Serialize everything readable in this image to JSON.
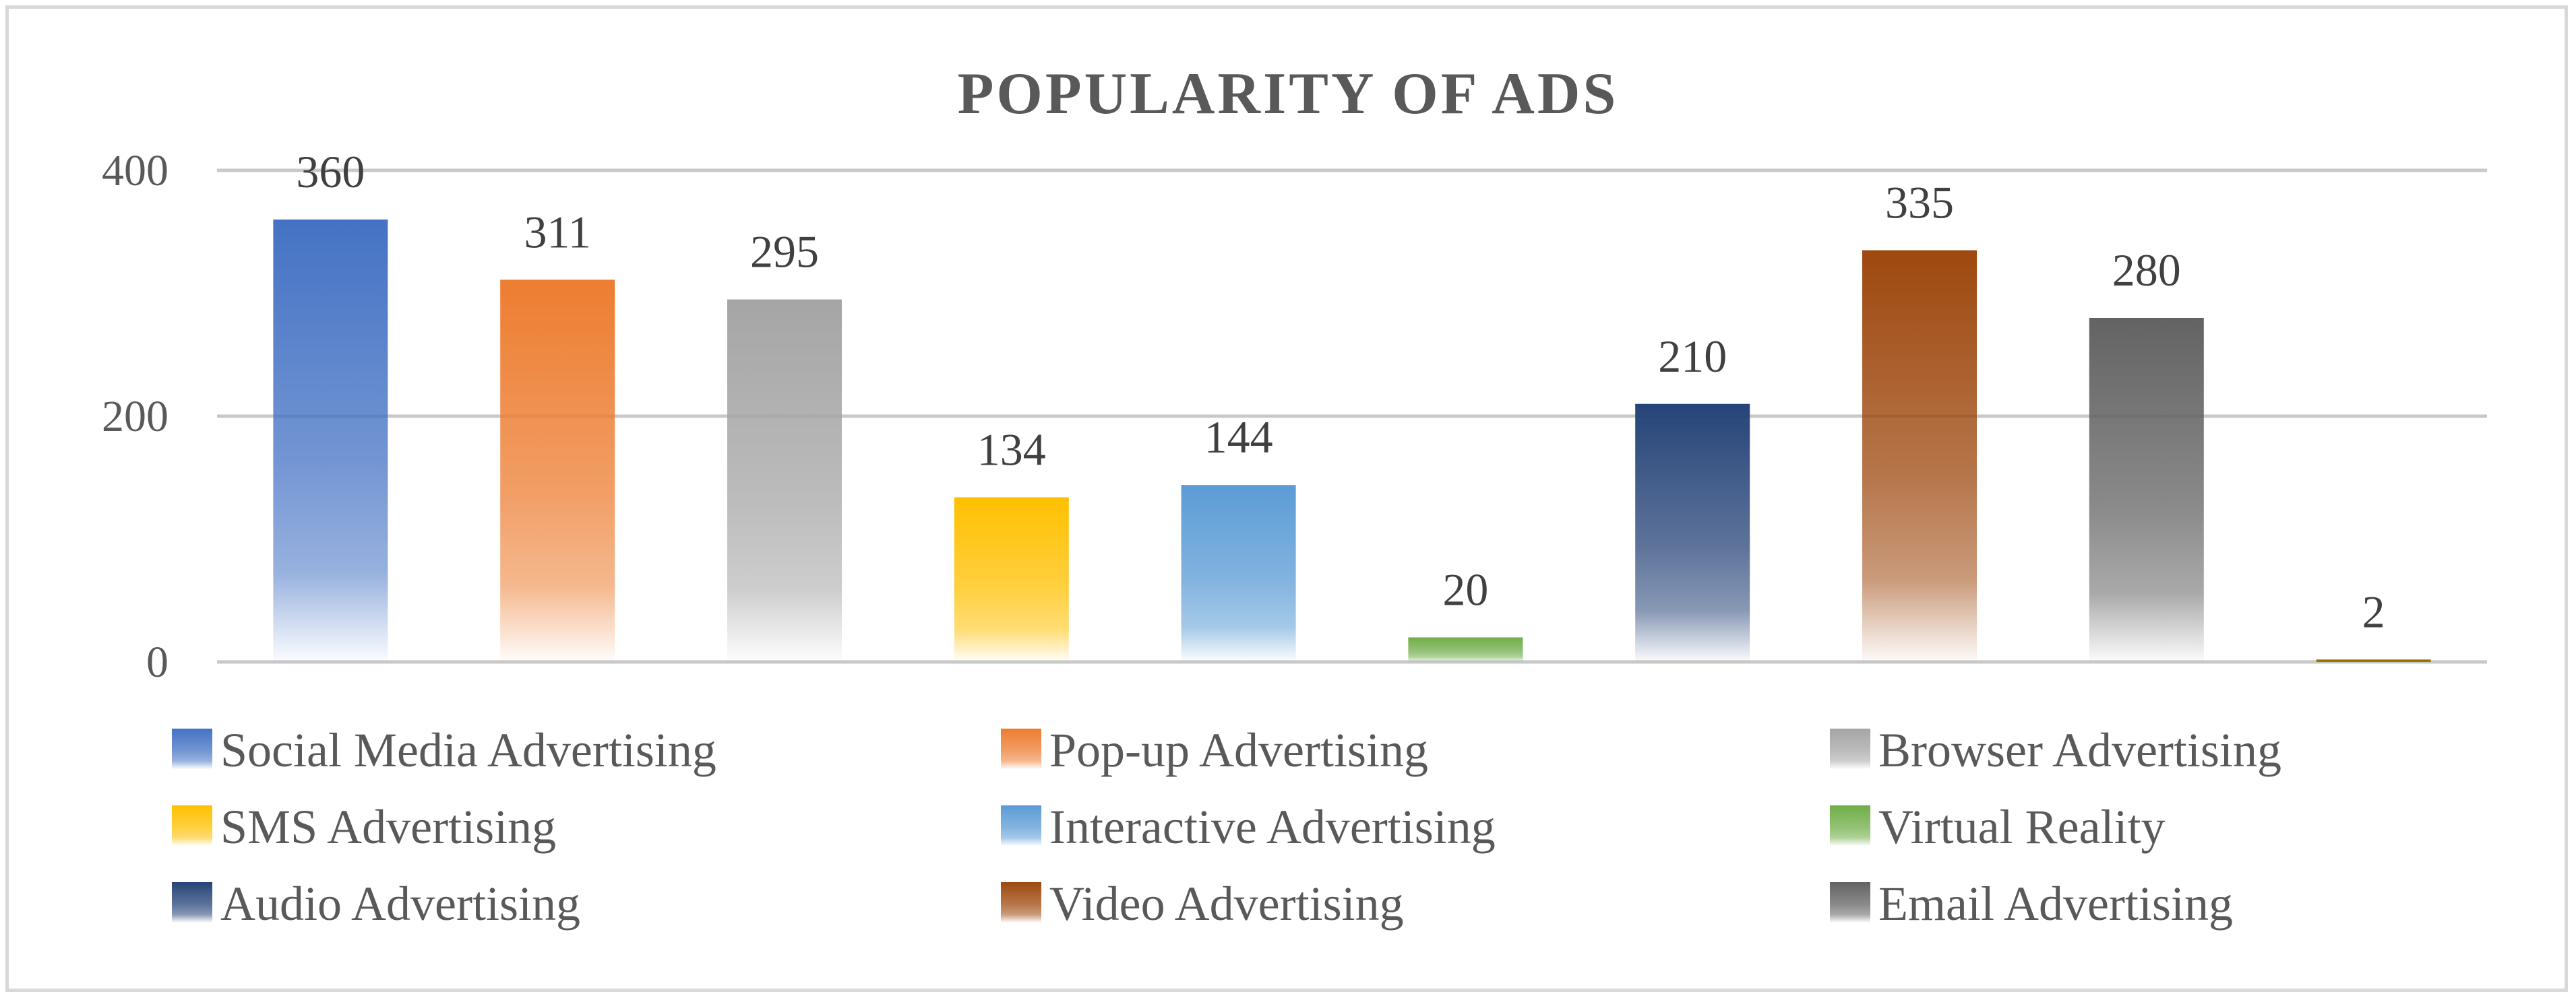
{
  "chart_data": {
    "type": "bar",
    "title": "POPULARITY OF ADS",
    "xlabel": "",
    "ylabel": "",
    "ylim": [
      0,
      400
    ],
    "yticks": [
      0,
      200,
      400
    ],
    "grid": true,
    "legend_position": "bottom",
    "categories": [
      "Social Media Advertising",
      "Pop-up Advertising",
      "Browser Advertising",
      "SMS Advertising",
      "Interactive Advertising",
      "Virtual Reality",
      "Audio Advertising",
      "Video Advertising",
      "Email Advertising",
      ""
    ],
    "values": [
      360,
      311,
      295,
      134,
      144,
      20,
      210,
      335,
      280,
      2
    ],
    "colors": [
      "#4472c4",
      "#ed7d31",
      "#a5a5a5",
      "#ffc000",
      "#5b9bd5",
      "#70ad47",
      "#264478",
      "#9e480e",
      "#636363",
      "#997300"
    ],
    "legend": [
      "Social Media Advertising",
      "Pop-up Advertising",
      "Browser Advertising",
      "SMS Advertising",
      "Interactive Advertising",
      "Virtual Reality",
      "Audio Advertising",
      "Video Advertising",
      "Email Advertising"
    ]
  }
}
